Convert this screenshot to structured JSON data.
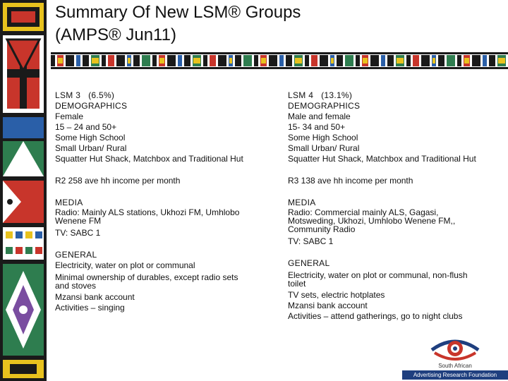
{
  "title": {
    "line1": "Summary Of New LSM® Groups",
    "line2": "(AMPS® Jun11)"
  },
  "left": {
    "heading": "LSM 3   (6.5%)",
    "demographics_label": "DEMOGRAPHICS",
    "demographics": [
      "Female",
      "15 – 24 and 50+",
      "Some High School",
      "Small Urban/ Rural",
      "Squatter Hut Shack, Matchbox and Traditional Hut"
    ],
    "income": "R2 258 ave hh income per month",
    "media_label": "MEDIA",
    "media": [
      "Radio: Mainly ALS stations, Ukhozi FM, Umhlobo",
      "Wenene FM",
      "TV: SABC 1"
    ],
    "general_label": "GENERAL",
    "general": [
      "Electricity, water on plot or communal",
      "Minimal ownership of durables, except radio sets",
      "and stoves",
      "Mzansi bank account",
      "Activities – singing"
    ]
  },
  "right": {
    "heading": "LSM 4   (13.1%)",
    "demographics_label": "DEMOGRAPHICS",
    "demographics": [
      "Male and female",
      "15- 34 and 50+",
      "Some High School",
      "Small Urban/ Rural",
      "Squatter Hut Shack, Matchbox and Traditional Hut"
    ],
    "income": "R3 138 ave hh income per month",
    "media_label": "MEDIA",
    "media": [
      "Radio: Commercial mainly ALS, Gagasi,",
      "Motsweding, Ukhozi, Umhlobo Wenene FM,,",
      "Community Radio",
      "TV: SABC 1"
    ],
    "general_label": "GENERAL",
    "general": [
      "Electricity, water on plot or communal, non-flush",
      "toilet",
      "TV sets, electric hotplates",
      "Mzansi bank account",
      "Activities – attend gatherings, go to night clubs"
    ]
  },
  "logo": {
    "line1": "South African",
    "line2": "Advertising Research Foundation"
  },
  "colors": {
    "pattern_dark": "#1a1a1a",
    "pattern_red": "#c8352b",
    "pattern_green": "#2e7d4f",
    "pattern_blue": "#2a5fa8",
    "pattern_yellow": "#e8c21e",
    "logo_blue": "#1f3f7f"
  }
}
